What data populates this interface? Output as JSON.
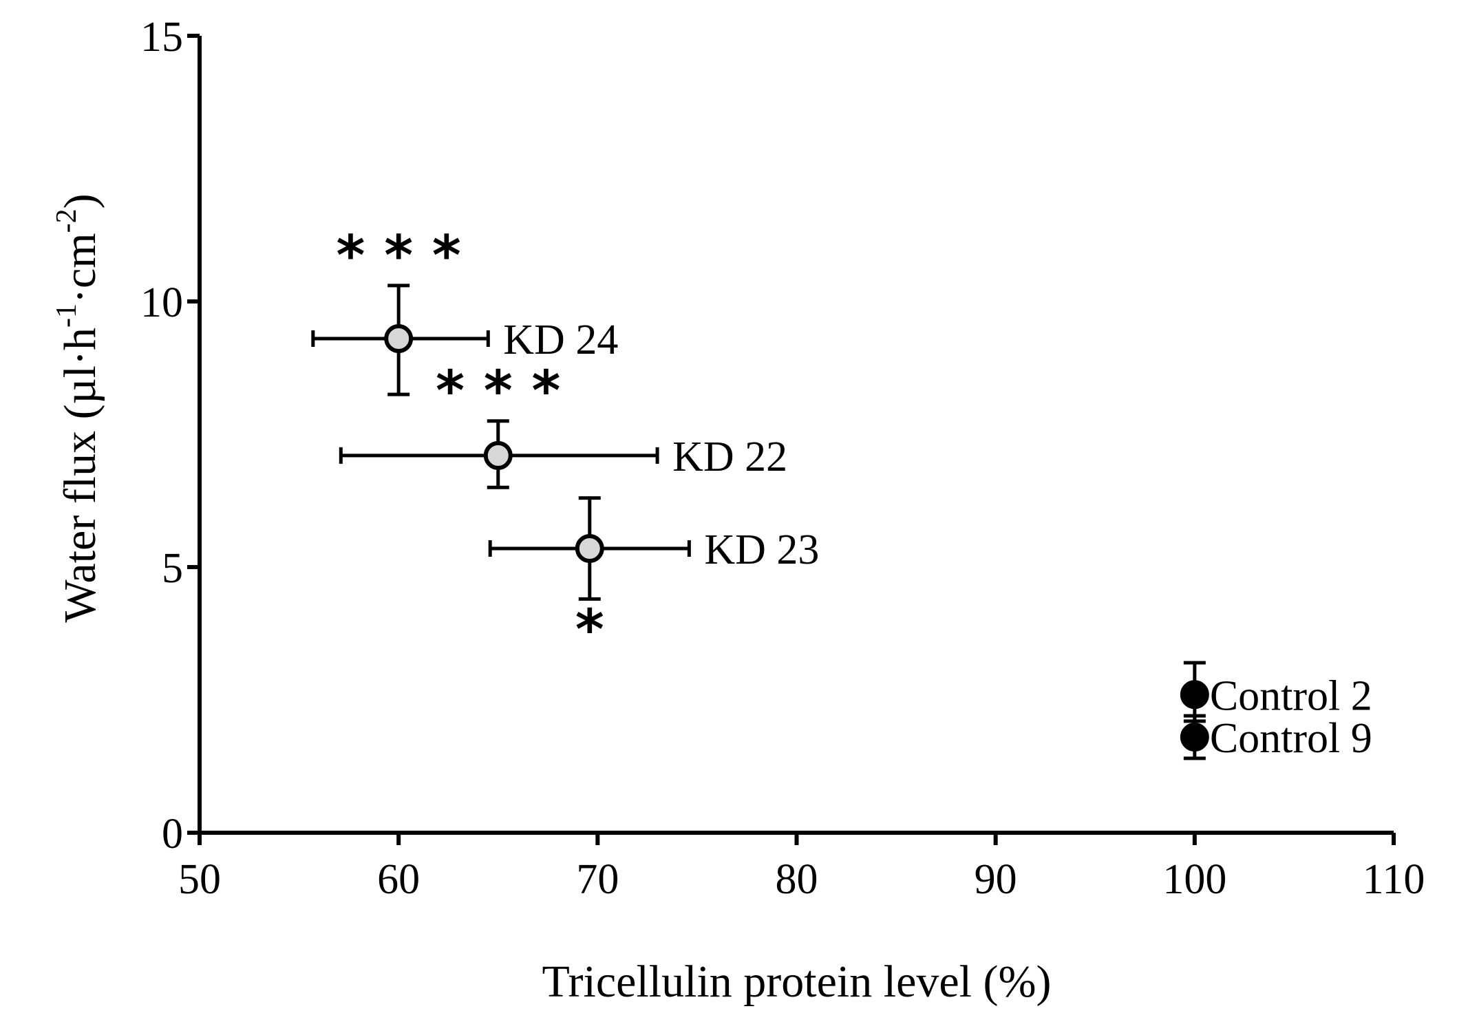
{
  "chart_data": {
    "type": "scatter",
    "title": "",
    "xlabel": "Tricellulin protein level (%)",
    "ylabel_main": "Water flux (µl·h",
    "ylabel_mid": "·cm",
    "ylabel_end": ")",
    "ylabel_sup1": "-1",
    "ylabel_sup2": "-2",
    "xlim": [
      50,
      110
    ],
    "ylim": [
      0,
      15
    ],
    "xticks": [
      50,
      60,
      70,
      80,
      90,
      100,
      110
    ],
    "yticks": [
      0,
      5,
      10,
      15
    ],
    "xtick_labels": [
      "50",
      "60",
      "70",
      "80",
      "90",
      "100",
      "110"
    ],
    "ytick_labels": [
      "0",
      "5",
      "10",
      "15"
    ],
    "points": [
      {
        "name": "KD 24",
        "label": "KD 24",
        "x": 60.0,
        "y": 9.3,
        "xerr_low": 55.7,
        "xerr_high": 64.5,
        "yerr_low": 8.25,
        "yerr_high": 10.3,
        "fill": "#d8d8d8",
        "significance": "***",
        "sig_pos": "above"
      },
      {
        "name": "KD 22",
        "label": "KD 22",
        "x": 65.0,
        "y": 7.1,
        "xerr_low": 57.1,
        "xerr_high": 73.0,
        "yerr_low": 6.5,
        "yerr_high": 7.75,
        "fill": "#d8d8d8",
        "significance": "***",
        "sig_pos": "above"
      },
      {
        "name": "KD 23",
        "label": "KD 23",
        "x": 69.6,
        "y": 5.35,
        "xerr_low": 64.6,
        "xerr_high": 74.6,
        "yerr_low": 4.4,
        "yerr_high": 6.3,
        "fill": "#d8d8d8",
        "significance": "*",
        "sig_pos": "below"
      },
      {
        "name": "Control 2",
        "label": "Control 2",
        "x": 100.0,
        "y": 2.6,
        "xerr_low": 100.0,
        "xerr_high": 100.0,
        "yerr_low": 2.1,
        "yerr_high": 3.2,
        "fill": "#000000",
        "significance": "",
        "sig_pos": ""
      },
      {
        "name": "Control 9",
        "label": "Control 9",
        "x": 100.0,
        "y": 1.8,
        "xerr_low": 100.0,
        "xerr_high": 100.0,
        "yerr_low": 1.4,
        "yerr_high": 2.2,
        "fill": "#000000",
        "significance": "",
        "sig_pos": ""
      }
    ]
  }
}
